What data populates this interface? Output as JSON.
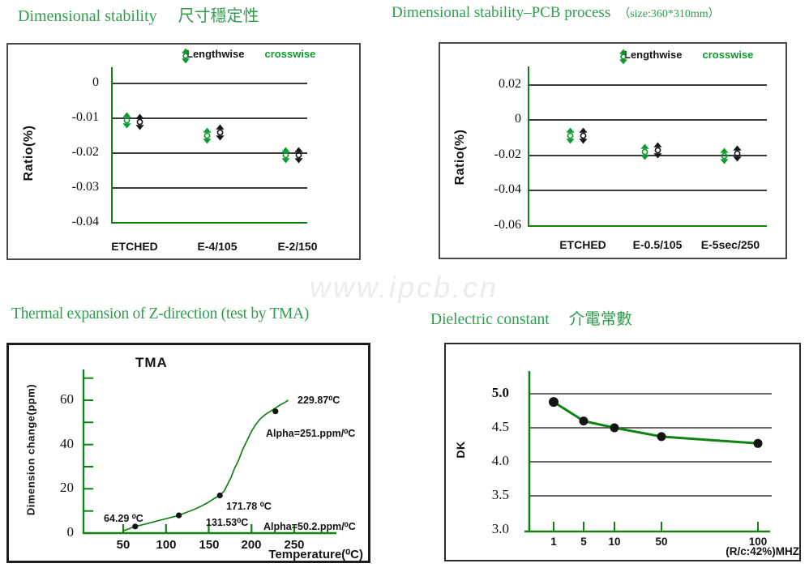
{
  "page": {
    "watermark": "www.ipcb.cn"
  },
  "sections": {
    "dim_stability": {
      "title_en": "Dimensional stability",
      "title_zh": "尺寸穩定性"
    },
    "dim_stability_pcb": {
      "title_en": "Dimensional stability–PCB process",
      "size_note": "（size:360*310mm）"
    },
    "thermal": {
      "title": "Thermal expansion of Z-direction (test by TMA)"
    },
    "dielectric": {
      "title_en": "Dielectric constant",
      "title_zh": "介電常數"
    }
  },
  "colors": {
    "title_green": "#2f9e4e",
    "chart_green": "#128312",
    "marker_green": "#0a9b2d",
    "marker_black": "#141414",
    "grid_gray": "#3a3a3a",
    "watermark_gray": "#ececec"
  },
  "chart_data": [
    {
      "id": "dimensional-stability",
      "type": "scatter",
      "title": "Dimensional stability 尺寸穩定性",
      "ylabel": "Ratio(%)",
      "categories": [
        "ETCHED",
        "E-4/105",
        "E-2/150"
      ],
      "yticks": [
        0,
        -0.01,
        -0.02,
        -0.03,
        -0.04
      ],
      "ylim": [
        -0.04,
        0.005
      ],
      "grid": true,
      "legend_position": "top-inside",
      "series": [
        {
          "name": "Lengthwise",
          "color": "#141414",
          "values": [
            -0.011,
            -0.014,
            -0.0205
          ]
        },
        {
          "name": "crosswise",
          "color": "#0a9b2d",
          "values": [
            -0.0105,
            -0.015,
            -0.0205
          ]
        }
      ]
    },
    {
      "id": "dimensional-stability-pcb-process",
      "type": "scatter",
      "title": "Dimensional stability–PCB process （size:360*310mm）",
      "ylabel": "Ratio(%)",
      "categories": [
        "ETCHED",
        "E-0.5/105",
        "E-5sec/250"
      ],
      "yticks": [
        0.02,
        0,
        -0.02,
        -0.04,
        -0.06
      ],
      "ylim": [
        -0.06,
        0.02
      ],
      "grid": true,
      "legend_position": "top-inside",
      "series": [
        {
          "name": "Lengthwise",
          "color": "#141414",
          "values": [
            -0.009,
            -0.017,
            -0.019
          ]
        },
        {
          "name": "crosswise",
          "color": "#0a9b2d",
          "values": [
            -0.009,
            -0.018,
            -0.0205
          ]
        }
      ]
    },
    {
      "id": "tma",
      "type": "line",
      "title": "TMA",
      "xlabel": "Temperature(⁰C)",
      "ylabel": "Dimension change(ppm)",
      "xticks": [
        50,
        100,
        150,
        200,
        250
      ],
      "yticks": [
        0,
        20,
        40,
        60
      ],
      "xlim": [
        10,
        290
      ],
      "ylim": [
        0,
        75
      ],
      "line_color": "#128312",
      "curve": [
        [
          50,
          1
        ],
        [
          57,
          2
        ],
        [
          64,
          3
        ],
        [
          75,
          4
        ],
        [
          85,
          5
        ],
        [
          95,
          6
        ],
        [
          105,
          7
        ],
        [
          115,
          8
        ],
        [
          125,
          9.5
        ],
        [
          135,
          11
        ],
        [
          143,
          12.5
        ],
        [
          150,
          14
        ],
        [
          156,
          15.5
        ],
        [
          163,
          17
        ],
        [
          168,
          19
        ],
        [
          172,
          22
        ],
        [
          176,
          25
        ],
        [
          180,
          29
        ],
        [
          185,
          33
        ],
        [
          190,
          38
        ],
        [
          195,
          42
        ],
        [
          200,
          46
        ],
        [
          205,
          49
        ],
        [
          210,
          51.5
        ],
        [
          216,
          53.5
        ],
        [
          222,
          55
        ],
        [
          228,
          56.5
        ],
        [
          234,
          58
        ],
        [
          239,
          59
        ],
        [
          243,
          60
        ]
      ],
      "marker_points": [
        [
          64,
          3
        ],
        [
          115,
          8
        ],
        [
          163,
          17
        ],
        [
          228,
          55
        ]
      ],
      "annotations": {
        "onset": "64.29 ⁰C",
        "mid": "171.78 ⁰C",
        "tg": "131.53⁰C",
        "end": "229.87⁰C",
        "alpha_above": "Alpha=251.ppm/⁰C",
        "alpha_below": "Alpha=50.2.ppm/⁰C"
      }
    },
    {
      "id": "dielectric-constant",
      "type": "line",
      "title": "Dielectric constant 介電常數",
      "xlabel": "(R/c:42%)MHZ",
      "ylabel": "DK",
      "x": [
        1,
        5,
        10,
        50,
        100
      ],
      "values": [
        4.88,
        4.6,
        4.5,
        4.37,
        4.27
      ],
      "yticks": [
        "5.0",
        "4.5",
        "4.0",
        "3.5",
        "3.0"
      ],
      "ylim": [
        3.0,
        5.2
      ],
      "line_color": "#128312",
      "marker_color": "#141414"
    }
  ]
}
